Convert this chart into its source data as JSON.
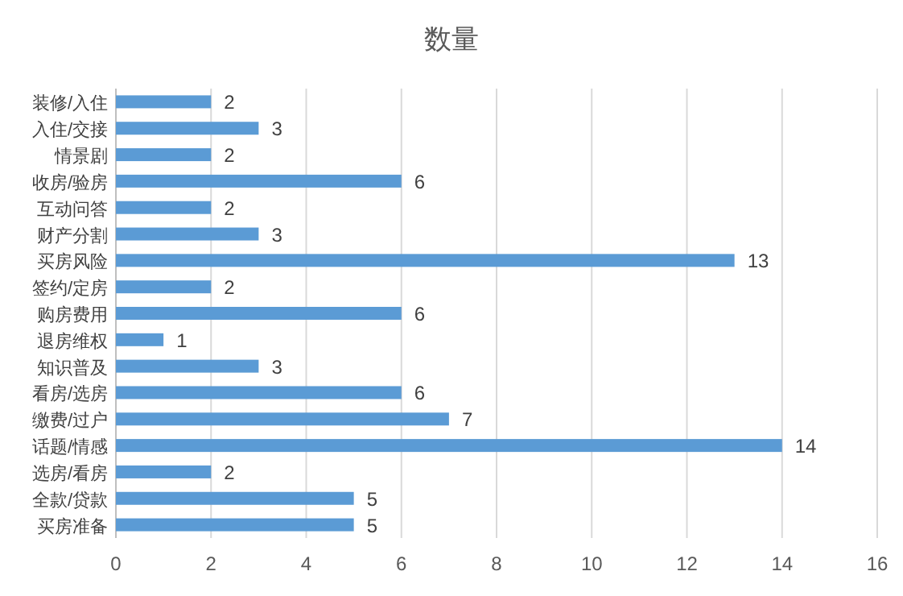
{
  "chart_data": {
    "type": "bar",
    "orientation": "horizontal",
    "title": "数量",
    "categories": [
      "装修/入住",
      "入住/交接",
      "情景剧",
      "收房/验房",
      "互动问答",
      "财产分割",
      "买房风险",
      "签约/定房",
      "购房费用",
      "退房维权",
      "知识普及",
      "看房/选房",
      "缴费/过户",
      "话题/情感",
      "选房/看房",
      "全款/贷款",
      "买房准备"
    ],
    "values": [
      2,
      3,
      2,
      6,
      2,
      3,
      13,
      2,
      6,
      1,
      3,
      6,
      7,
      14,
      2,
      5,
      5
    ],
    "color": "#5b9bd5",
    "xlim": [
      0,
      16
    ],
    "xticks": [
      0,
      2,
      4,
      6,
      8,
      10,
      12,
      14,
      16
    ],
    "grid": "x",
    "data_labels": true
  }
}
